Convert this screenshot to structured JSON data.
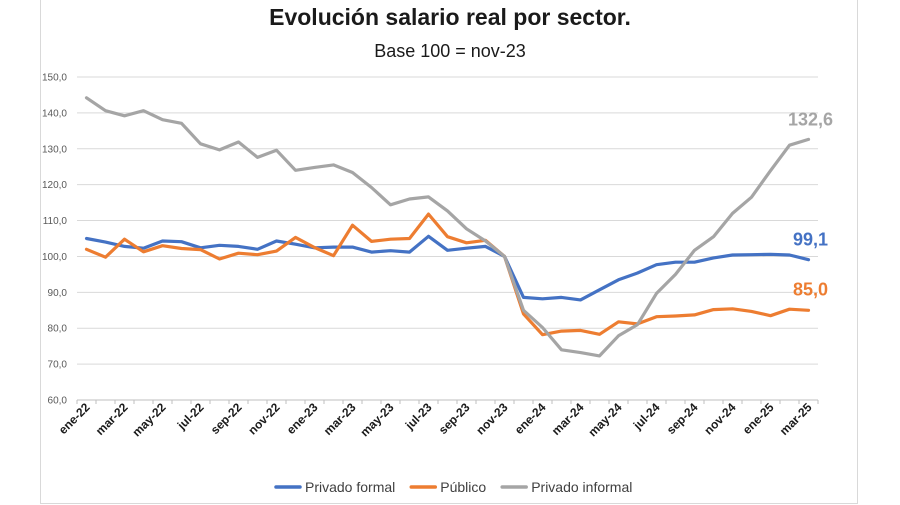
{
  "chart_data": {
    "type": "line",
    "title": "Evolución salario real por sector.",
    "subtitle": "Base 100 = nov-23",
    "xlabel": "",
    "ylabel": "",
    "ylim": [
      60,
      150
    ],
    "y_ticks": [
      "60,0",
      "70,0",
      "80,0",
      "90,0",
      "100,0",
      "110,0",
      "120,0",
      "130,0",
      "140,0",
      "150,0"
    ],
    "grid": true,
    "legend_position": "bottom",
    "x": [
      "ene-22",
      "feb-22",
      "mar-22",
      "abr-22",
      "may-22",
      "jun-22",
      "jul-22",
      "ago-22",
      "sep-22",
      "oct-22",
      "nov-22",
      "dic-22",
      "ene-23",
      "feb-23",
      "mar-23",
      "abr-23",
      "may-23",
      "jun-23",
      "jul-23",
      "ago-23",
      "sep-23",
      "oct-23",
      "nov-23",
      "dic-23",
      "ene-24",
      "feb-24",
      "mar-24",
      "abr-24",
      "may-24",
      "jun-24",
      "jul-24",
      "ago-24",
      "sep-24",
      "oct-24",
      "nov-24",
      "dic-24",
      "ene-25",
      "feb-25",
      "mar-25"
    ],
    "x_tick_labels": [
      "ene-22",
      "mar-22",
      "may-22",
      "jul-22",
      "sep-22",
      "nov-22",
      "ene-23",
      "mar-23",
      "may-23",
      "jul-23",
      "sep-23",
      "nov-23",
      "ene-24",
      "mar-24",
      "may-24",
      "jul-24",
      "sep-24",
      "nov-24",
      "ene-25",
      "mar-25"
    ],
    "series": [
      {
        "name": "Privado formal",
        "color": "#4472c4",
        "end_label": "99,1",
        "values": [
          105.0,
          104.0,
          102.8,
          102.3,
          104.3,
          104.1,
          102.4,
          103.1,
          102.8,
          102.0,
          104.3,
          103.4,
          102.4,
          102.6,
          102.6,
          101.2,
          101.6,
          101.2,
          105.6,
          101.7,
          102.3,
          102.8,
          100.0,
          88.6,
          88.2,
          88.6,
          87.9,
          90.7,
          93.5,
          95.4,
          97.7,
          98.4,
          98.4,
          99.6,
          100.4,
          100.5,
          100.6,
          100.4,
          99.1
        ]
      },
      {
        "name": "Público",
        "color": "#ed7d31",
        "end_label": "85,0",
        "values": [
          102.0,
          99.8,
          104.8,
          101.3,
          103.0,
          102.2,
          101.9,
          99.3,
          100.9,
          100.5,
          101.5,
          105.3,
          102.5,
          100.2,
          108.7,
          104.2,
          104.8,
          105.0,
          111.8,
          105.5,
          103.8,
          104.5,
          100.0,
          84.0,
          78.2,
          79.2,
          79.4,
          78.3,
          81.8,
          81.2,
          83.2,
          83.4,
          83.7,
          85.2,
          85.4,
          84.7,
          83.5,
          85.3,
          85.0
        ]
      },
      {
        "name": "Privado informal",
        "color": "#a5a5a5",
        "end_label": "132,6",
        "values": [
          144.2,
          140.6,
          139.2,
          140.6,
          138.1,
          137.1,
          131.4,
          129.7,
          131.9,
          127.6,
          129.6,
          124.0,
          124.8,
          125.5,
          123.4,
          119.2,
          114.4,
          116.0,
          116.6,
          112.7,
          107.7,
          104.3,
          100.0,
          85.0,
          80.2,
          74.0,
          73.2,
          72.3,
          77.9,
          81.0,
          89.7,
          95.0,
          101.7,
          105.5,
          112.0,
          116.5,
          123.9,
          131.0,
          132.6
        ]
      }
    ]
  }
}
